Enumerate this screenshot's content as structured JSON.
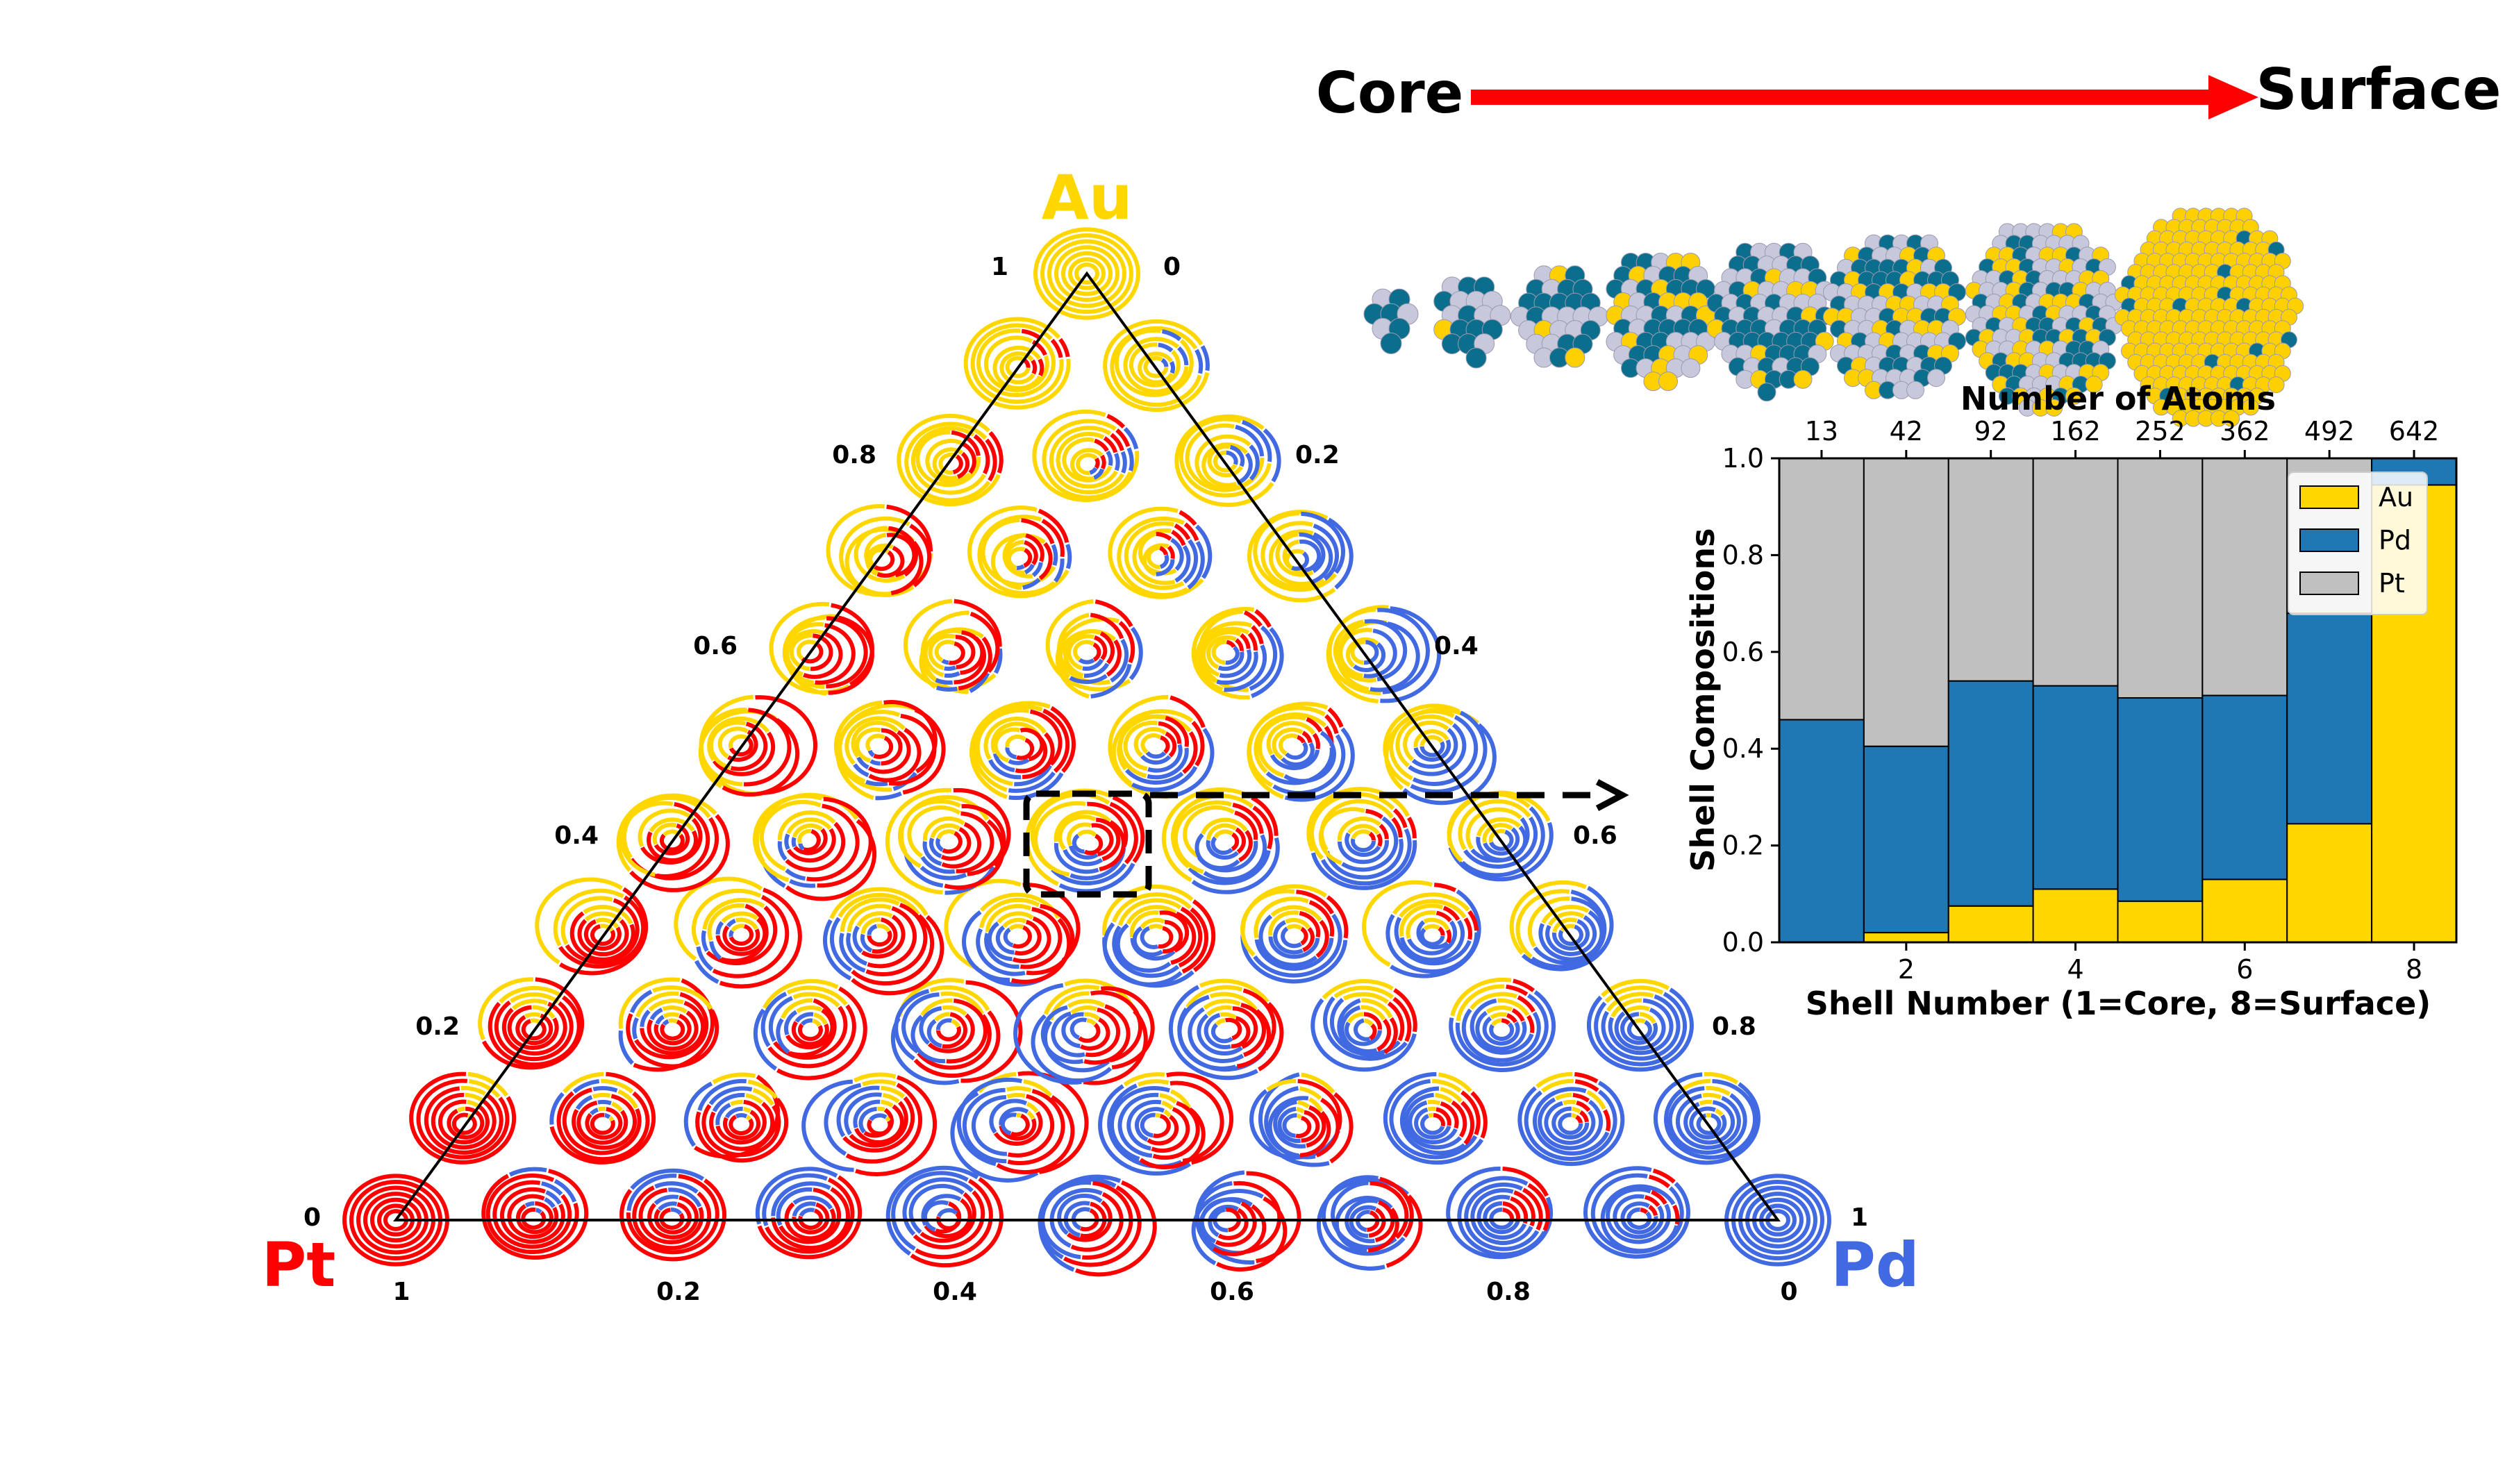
{
  "figure": {
    "flow": {
      "start_label": "Core",
      "end_label": "Surface",
      "arrow_color": "#ff0000"
    },
    "ternary": {
      "vertices": {
        "top": "Au",
        "left": "Pt",
        "right": "Pd"
      },
      "colors": {
        "Au": "#ffd700",
        "Pt": "#ff0000",
        "Pd": "#4169e1"
      },
      "bottom_ticks": [
        "1",
        "0.2",
        "0.4",
        "0.6",
        "0.8",
        "0"
      ],
      "left_ticks": [
        "0",
        "0.2",
        "0.4",
        "0.6",
        "0.8",
        "1"
      ],
      "right_ticks": [
        "0",
        "0.2",
        "0.4",
        "0.6",
        "0.8",
        "1"
      ]
    },
    "clusters": {
      "atoms": [
        "13",
        "42",
        "92",
        "162",
        "252",
        "362",
        "492",
        "642"
      ]
    }
  },
  "chart_data": {
    "type": "bar",
    "stacked": true,
    "title": "",
    "xlabel": "Shell Number (1=Core, 8=Surface)",
    "ylabel": "Shell Compositions",
    "top_xlabel": "Number of Atoms",
    "x": [
      1,
      2,
      3,
      4,
      5,
      6,
      7,
      8
    ],
    "xticks": [
      2,
      4,
      6,
      8
    ],
    "top_xticks": [
      "13",
      "42",
      "92",
      "162",
      "252",
      "362",
      "492",
      "642"
    ],
    "ylim": [
      0,
      1.0
    ],
    "yticks": [
      "0.0",
      "0.2",
      "0.4",
      "0.6",
      "0.8",
      "1.0"
    ],
    "legend_position": "top-right",
    "series": [
      {
        "name": "Au",
        "color": "#ffd700",
        "values": [
          0.0,
          0.02,
          0.075,
          0.11,
          0.085,
          0.13,
          0.245,
          0.945
        ]
      },
      {
        "name": "Pd",
        "color": "#1f77b4",
        "values": [
          0.46,
          0.385,
          0.465,
          0.42,
          0.42,
          0.38,
          0.435,
          0.055
        ]
      },
      {
        "name": "Pt",
        "color": "#c0c0c0",
        "values": [
          0.54,
          0.595,
          0.46,
          0.47,
          0.495,
          0.49,
          0.32,
          0.0
        ]
      }
    ]
  }
}
